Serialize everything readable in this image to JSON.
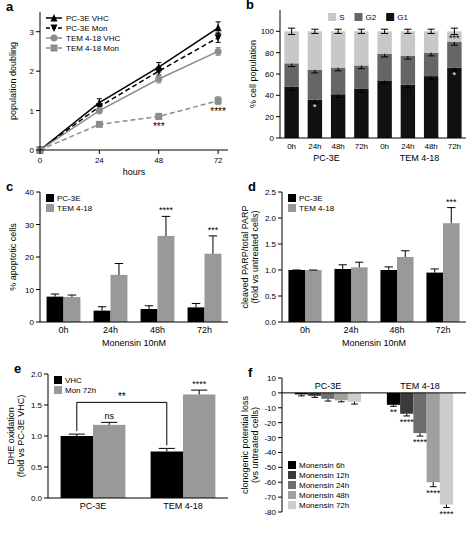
{
  "chart_data": [
    {
      "type": "line",
      "title": "a",
      "xlabel": "hours",
      "ylabel": "population doubling",
      "x": [
        0,
        24,
        48,
        72
      ],
      "xlim": [
        0,
        76
      ],
      "xticks": [
        0,
        24,
        48,
        72
      ],
      "ylim": [
        0,
        3.5
      ],
      "yticks": [
        0,
        1,
        2,
        3
      ],
      "legend": "top-left",
      "series": [
        {
          "name": "PC-3E VHC",
          "color": "#000000",
          "marker": "triangle",
          "line_style": "solid",
          "values": [
            0,
            1.2,
            2.1,
            3.1
          ],
          "errors": [
            0,
            0.1,
            0.12,
            0.15
          ]
        },
        {
          "name": "PC-3E Mon",
          "color": "#000000",
          "marker": "triangle-down",
          "line_style": "dashed",
          "values": [
            0,
            1.1,
            2.0,
            2.85
          ],
          "errors": [
            0,
            0.08,
            0.1,
            0.12
          ]
        },
        {
          "name": "TEM 4-18 VHC",
          "color": "#8c8c8c",
          "marker": "circle",
          "line_style": "solid",
          "values": [
            0,
            1.0,
            1.8,
            2.5
          ],
          "errors": [
            0,
            0.08,
            0.1,
            0.1
          ]
        },
        {
          "name": "TEM 4-18 Mon",
          "color": "#8c8c8c",
          "marker": "square",
          "line_style": "dashed",
          "values": [
            0,
            0.65,
            0.85,
            1.25
          ],
          "errors": [
            0,
            0.06,
            0.08,
            0.1
          ]
        }
      ],
      "annotations": [
        {
          "text": "***",
          "series": 3,
          "index": 2
        },
        {
          "text": "****",
          "series": 3,
          "index": 3
        }
      ]
    },
    {
      "type": "bar",
      "stacked": true,
      "title": "b",
      "ylabel": "% cell population",
      "categories": [
        "0h",
        "24h",
        "48h",
        "72h",
        "0h",
        "24h",
        "48h",
        "72h"
      ],
      "group_labels": [
        {
          "label": "PC-3E",
          "start": 0,
          "end": 3
        },
        {
          "label": "TEM 4-18",
          "start": 4,
          "end": 7
        }
      ],
      "ylim": [
        0,
        120
      ],
      "yticks": [
        0,
        20,
        40,
        60,
        80,
        100
      ],
      "legend": "top",
      "series": [
        {
          "name": "G1",
          "color": "#111111",
          "values": [
            48,
            36,
            41,
            46,
            54,
            50,
            58,
            66
          ],
          "errors": [
            3,
            3,
            3,
            3,
            3,
            3,
            3,
            3
          ]
        },
        {
          "name": "G2",
          "color": "#666666",
          "values": [
            22,
            28,
            25,
            22,
            25,
            27,
            22,
            24
          ],
          "errors": [
            3,
            3,
            3,
            3,
            3,
            3,
            3,
            3
          ]
        },
        {
          "name": "S",
          "color": "#c8c8c8",
          "values": [
            30,
            36,
            34,
            32,
            21,
            23,
            20,
            10
          ],
          "errors": [
            3,
            2,
            2,
            2,
            2,
            2,
            2,
            3
          ]
        }
      ],
      "annotations": [
        {
          "text": "*",
          "series": 0,
          "index": 1
        },
        {
          "text": "*",
          "series": 0,
          "index": 7
        },
        {
          "text": "***",
          "series": 2,
          "index": 7
        }
      ]
    },
    {
      "type": "bar",
      "title": "c",
      "ylabel": "% apoptotic cells",
      "xlabel": "Monensin 10nM",
      "categories": [
        "0h",
        "24h",
        "48h",
        "72h"
      ],
      "ylim": [
        0,
        40
      ],
      "yticks": [
        0,
        10,
        20,
        30,
        40
      ],
      "legend": "top-left",
      "series": [
        {
          "name": "PC-3E",
          "color": "#000000",
          "values": [
            7.8,
            3.5,
            4,
            4.5
          ],
          "errors": [
            0.8,
            1.2,
            1,
            1.2
          ]
        },
        {
          "name": "TEM 4-18",
          "color": "#999999",
          "values": [
            7.7,
            14.5,
            26.5,
            21
          ],
          "errors": [
            0.6,
            3.5,
            6,
            5.5
          ]
        }
      ],
      "annotations": [
        {
          "text": "****",
          "series": 1,
          "index": 2
        },
        {
          "text": "***",
          "series": 1,
          "index": 3
        }
      ]
    },
    {
      "type": "bar",
      "title": "d",
      "ylabel": [
        "cleaved PARP/total PARP",
        "(fold vs untreated cells)"
      ],
      "xlabel": "Monensin 10nM",
      "categories": [
        "0h",
        "24h",
        "48h",
        "72h"
      ],
      "ylim": [
        0,
        2.5
      ],
      "yticks": [
        {
          "value": 0,
          "label": "0.0"
        },
        {
          "value": 0.5,
          "label": "0.5"
        },
        {
          "value": 1,
          "label": "1.0"
        },
        {
          "value": 1.5,
          "label": "1.5"
        },
        {
          "value": 2,
          "label": "2.0"
        },
        {
          "value": 2.5,
          "label": "2.5"
        }
      ],
      "legend": "top-left",
      "series": [
        {
          "name": "PC-3E",
          "color": "#000000",
          "values": [
            1,
            1.02,
            1,
            0.95
          ],
          "errors": [
            0,
            0.08,
            0.06,
            0.07
          ]
        },
        {
          "name": "TEM 4-18",
          "color": "#999999",
          "values": [
            1,
            1.05,
            1.25,
            1.9
          ],
          "errors": [
            0,
            0.1,
            0.12,
            0.3
          ]
        }
      ],
      "annotations": [
        {
          "text": "***",
          "series": 1,
          "index": 3
        }
      ]
    },
    {
      "type": "bar",
      "title": "e",
      "ylabel": [
        "DHE oxidation",
        "(fold vs PC-3E VHC)"
      ],
      "categories": [
        "PC-3E",
        "TEM 4-18"
      ],
      "ylim": [
        0,
        2
      ],
      "yticks": [
        {
          "value": 0,
          "label": "0.0"
        },
        {
          "value": 0.5,
          "label": "0.5"
        },
        {
          "value": 1,
          "label": "1.0"
        },
        {
          "value": 1.5,
          "label": "1.5"
        },
        {
          "value": 2,
          "label": "2.0"
        }
      ],
      "legend": "top-left",
      "series": [
        {
          "name": "VHC",
          "color": "#000000",
          "values": [
            1.0,
            0.75
          ],
          "errors": [
            0.03,
            0.05
          ]
        },
        {
          "name": "Mon 72h",
          "color": "#999999",
          "values": [
            1.18,
            1.67
          ],
          "errors": [
            0.04,
            0.07
          ]
        }
      ],
      "annotations": [
        {
          "text": "ns",
          "series": 1,
          "index": 0
        },
        {
          "text": "****",
          "series": 1,
          "index": 1
        },
        {
          "text": "**",
          "series": 0,
          "bracket": [
            0,
            1
          ]
        }
      ]
    },
    {
      "type": "bar",
      "title": "f",
      "ylabel": [
        "clonogenic potential loss",
        "(vs untreated cells)"
      ],
      "categories": [
        "PC-3E",
        "TEM 4-18"
      ],
      "ylim": [
        -80,
        10
      ],
      "yticks": [
        -80,
        -70,
        -60,
        -50,
        -40,
        -30,
        -20,
        -10,
        0,
        10
      ],
      "legend": "bottom-left",
      "series": [
        {
          "name": "Monensin 6h",
          "color": "#000000",
          "values": [
            -1,
            -8
          ],
          "errors": [
            1,
            1
          ]
        },
        {
          "name": "Monensin 12h",
          "color": "#3a3a3a",
          "values": [
            -2,
            -14
          ],
          "errors": [
            1,
            1.5
          ]
        },
        {
          "name": "Monensin 24h",
          "color": "#6e6e6e",
          "values": [
            -4,
            -27
          ],
          "errors": [
            1.5,
            2
          ]
        },
        {
          "name": "Monensin 48h",
          "color": "#a0a0a0",
          "values": [
            -5,
            -60
          ],
          "errors": [
            1,
            3
          ]
        },
        {
          "name": "Monensin 72h",
          "color": "#cdcdcd",
          "values": [
            -6,
            -75
          ],
          "errors": [
            1.5,
            2
          ]
        }
      ],
      "annotations": [
        {
          "text": "**",
          "series": 0,
          "index": 1
        },
        {
          "text": "****",
          "series": 1,
          "index": 1
        },
        {
          "text": "****",
          "series": 2,
          "index": 1
        },
        {
          "text": "****",
          "series": 3,
          "index": 1
        },
        {
          "text": "****",
          "series": 4,
          "index": 1
        }
      ]
    }
  ]
}
